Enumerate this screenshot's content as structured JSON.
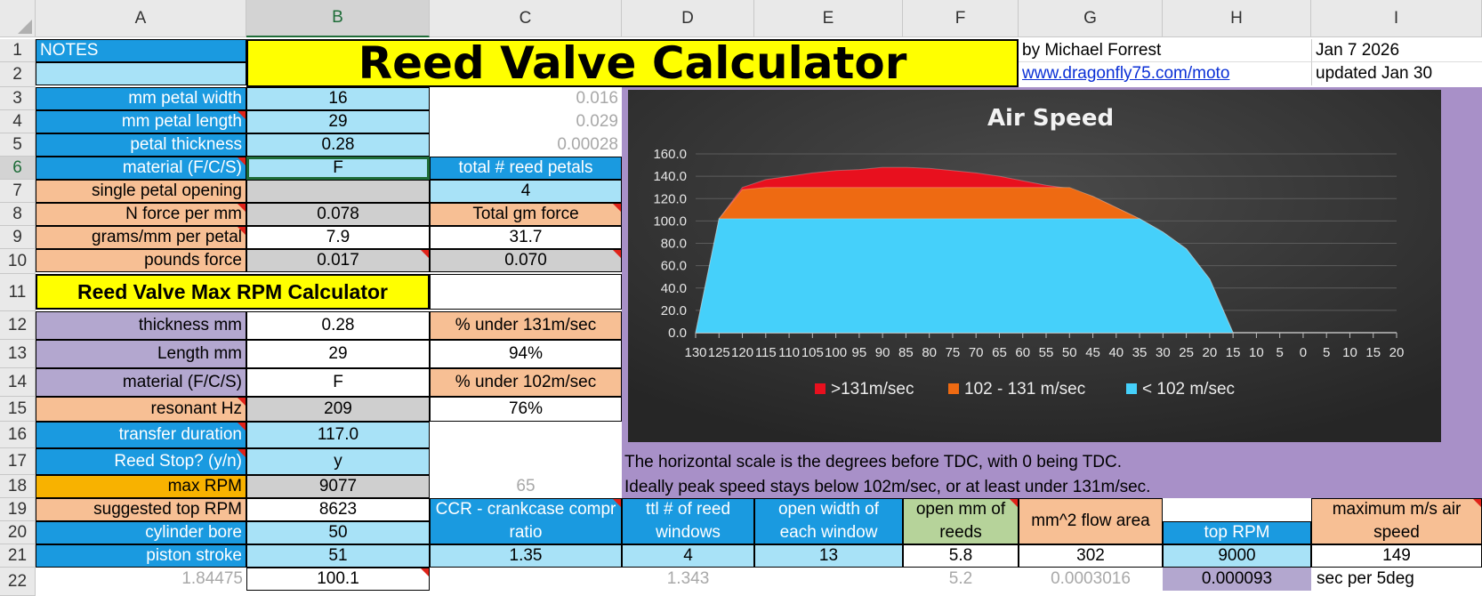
{
  "columns": [
    "A",
    "B",
    "C",
    "D",
    "E",
    "F",
    "G",
    "H",
    "I"
  ],
  "rows": [
    "1",
    "2",
    "3",
    "4",
    "5",
    "6",
    "7",
    "8",
    "9",
    "10",
    "11",
    "12",
    "13",
    "14",
    "15",
    "16",
    "17",
    "18",
    "19",
    "20",
    "21",
    "22"
  ],
  "header": {
    "notes": "NOTES",
    "title": "Reed Valve Calculator",
    "author": "by Michael Forrest",
    "link": "www.dragonfly75.com/moto",
    "date": "Jan 7 2026",
    "updated": "updated Jan 30"
  },
  "petal": {
    "width_label": "mm petal width",
    "width": "16",
    "width_m": "0.016",
    "length_label": "mm petal length",
    "length": "29",
    "length_m": "0.029",
    "thick_label": "petal thickness",
    "thick": "0.28",
    "thick_m": "0.00028",
    "material_label": "material (F/C/S)",
    "material": "F",
    "total_petals_label": "total # reed petals",
    "total_petals": "4",
    "opening_label": "single petal opening",
    "nforce_label": "N force per mm",
    "nforce": "0.078",
    "total_gm_label": "Total gm force",
    "grams_label": "grams/mm per petal",
    "grams": "7.9",
    "total_gm": "31.7",
    "pounds_label": "pounds force",
    "pounds": "0.017",
    "pounds_total": "0.070"
  },
  "maxrpm": {
    "title": "Reed Valve Max RPM Calculator",
    "thick_label": "thickness mm",
    "thick": "0.28",
    "under131_label": "% under 131m/sec",
    "length_label": "Length mm",
    "length": "29",
    "under131": "94%",
    "material_label": "material (F/C/S)",
    "material": "F",
    "under102_label": "% under 102m/sec",
    "hz_label": "resonant Hz",
    "hz": "209",
    "under102": "76%",
    "transfer_label": "transfer duration",
    "transfer": "117.0",
    "stop_label": "Reed Stop? (y/n)",
    "stop": "y",
    "max_label": "max RPM",
    "max": "9077",
    "max_c": "65",
    "suggested_label": "suggested top RPM",
    "suggested": "8623",
    "bore_label": "cylinder bore",
    "bore": "50",
    "stroke_label": "piston stroke",
    "stroke": "51",
    "a22": "1.84475",
    "b22": "100.1"
  },
  "bottom": {
    "ccr_label": "CCR - crankcase compr ratio",
    "ccr": "1.35",
    "windows_label": "ttl # of reed windows",
    "windows": "4",
    "d22": "1.343",
    "width_label": "open width of each window",
    "width": "13",
    "openmm_label": "open mm of reeds",
    "openmm": "5.8",
    "f22": "5.2",
    "flow_label": "mm^2 flow area",
    "flow": "302",
    "g22": "0.0003016",
    "toprpm_label": "top RPM",
    "toprpm": "9000",
    "h22": "0.000093",
    "maxair_label": "maximum m/s air speed",
    "maxair": "149",
    "sec_label": "sec per 5deg"
  },
  "notes": {
    "line1": "The horizontal scale is the degrees before TDC, with 0 being TDC.",
    "line2": "Ideally peak speed stays below 102m/sec, or at least under 131m/sec."
  },
  "colors": {
    "red": "#e8101e",
    "orange": "#ee6a12",
    "cyan": "#45d0fa",
    "chart_bg": "#303030"
  },
  "chart_data": {
    "type": "area",
    "title": "Air Speed",
    "x": [
      "130",
      "125",
      "120",
      "115",
      "110",
      "105",
      "100",
      "95",
      "90",
      "85",
      "80",
      "75",
      "70",
      "65",
      "60",
      "55",
      "50",
      "45",
      "40",
      "35",
      "30",
      "25",
      "20",
      "15",
      "10",
      "5",
      "0",
      "5",
      "10",
      "15",
      "20"
    ],
    "ylim": [
      0,
      160
    ],
    "yticks": [
      "0.0",
      "20.0",
      "40.0",
      "60.0",
      "80.0",
      "100.0",
      "120.0",
      "140.0",
      "160.0"
    ],
    "series": [
      {
        "name": ">131m/sec",
        "values": [
          0,
          102,
          130,
          137,
          140,
          143,
          145,
          146,
          148,
          148,
          147,
          145,
          143,
          140,
          136,
          132,
          129,
          122,
          112,
          102,
          90,
          75,
          48,
          0,
          null,
          null,
          null,
          null,
          null,
          null,
          null
        ]
      },
      {
        "name": "102 - 131 m/sec",
        "values": [
          0,
          102,
          128,
          130,
          130,
          130,
          130,
          130,
          130,
          130,
          130,
          130,
          130,
          130,
          130,
          130,
          130,
          122,
          112,
          102,
          90,
          75,
          48,
          0,
          null,
          null,
          null,
          null,
          null,
          null,
          null
        ]
      },
      {
        "name": "< 102 m/sec",
        "values": [
          0,
          102,
          102,
          102,
          102,
          102,
          102,
          102,
          102,
          102,
          102,
          102,
          102,
          102,
          102,
          102,
          102,
          102,
          102,
          102,
          90,
          75,
          48,
          0,
          null,
          null,
          null,
          null,
          null,
          null,
          null
        ]
      }
    ],
    "legend": "bottom",
    "grid": true
  }
}
